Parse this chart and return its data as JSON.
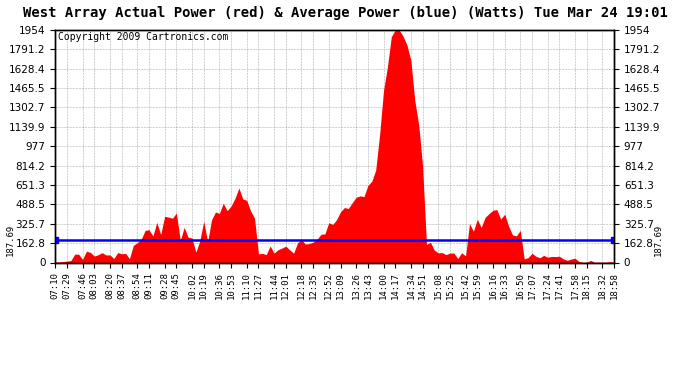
{
  "title": "West Array Actual Power (red) & Average Power (blue) (Watts) Tue Mar 24 19:01",
  "copyright": "Copyright 2009 Cartronics.com",
  "ymin": 0.0,
  "ymax": 1954.0,
  "yticks": [
    0.0,
    162.8,
    325.7,
    488.5,
    651.3,
    814.2,
    977.0,
    1139.9,
    1302.7,
    1465.5,
    1628.4,
    1791.2,
    1954.0
  ],
  "average_value": 187.69,
  "avg_line_color": "#0000ff",
  "fill_color": "#ff0000",
  "line_color": "#ff0000",
  "background_color": "#ffffff",
  "grid_color": "#999999",
  "title_fontsize": 10,
  "copyright_fontsize": 7,
  "x_label_fontsize": 6.5,
  "y_label_fontsize": 7.5,
  "num_points": 144,
  "x_labels": [
    "07:10",
    "07:29",
    "07:46",
    "08:03",
    "08:20",
    "08:37",
    "08:54",
    "09:11",
    "09:28",
    "09:45",
    "10:02",
    "10:19",
    "10:36",
    "10:53",
    "11:10",
    "11:27",
    "11:44",
    "12:01",
    "12:18",
    "12:35",
    "12:52",
    "13:09",
    "13:26",
    "13:43",
    "14:00",
    "14:17",
    "14:34",
    "14:51",
    "15:08",
    "15:25",
    "15:42",
    "15:59",
    "16:16",
    "16:33",
    "16:50",
    "17:07",
    "17:24",
    "17:41",
    "17:58",
    "18:15",
    "18:32",
    "18:58"
  ]
}
